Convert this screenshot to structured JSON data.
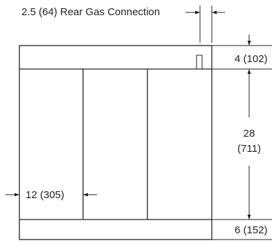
{
  "dimensions": {
    "gas_connection": "2.5 (64) Rear Gas Connection",
    "top_band": "4 (102)",
    "main_height_in": "28",
    "main_height_mm": "(711)",
    "bay_width": "12 (305)",
    "bottom_band": "6 (152)"
  },
  "colors": {
    "line": "#231f20",
    "background": "#ffffff"
  }
}
